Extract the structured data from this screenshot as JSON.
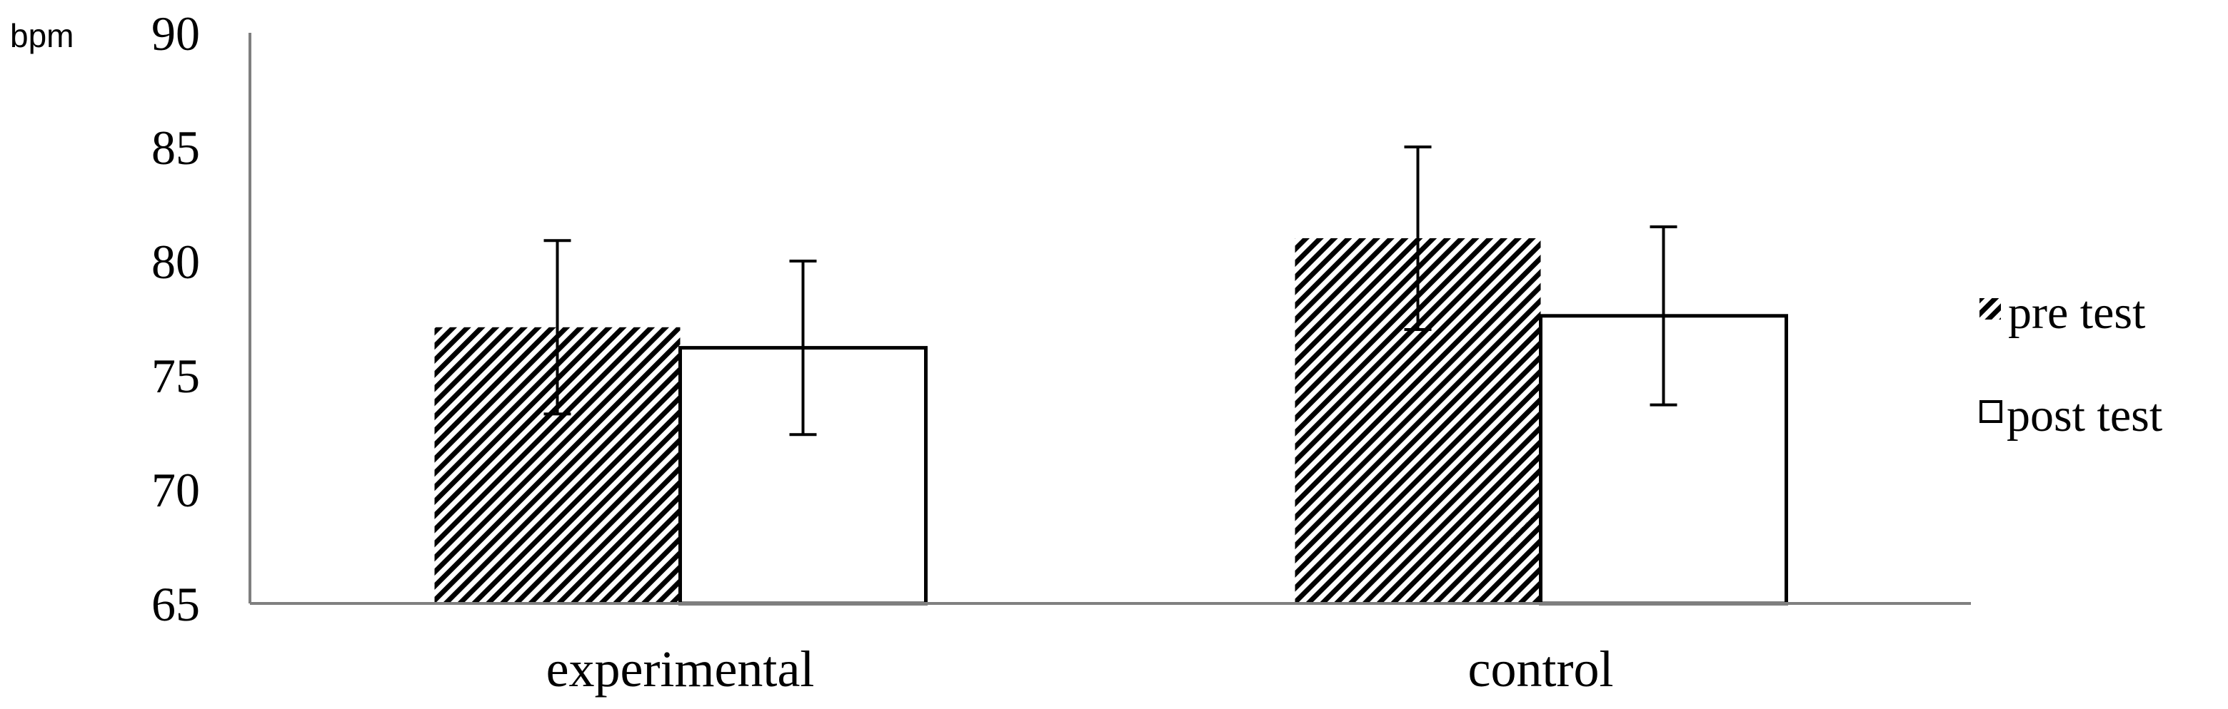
{
  "chart_data": {
    "type": "bar",
    "title": "",
    "xlabel": "",
    "ylabel": "bpm",
    "ylim": [
      65,
      90
    ],
    "yticks": [
      65,
      70,
      75,
      80,
      85,
      90
    ],
    "categories": [
      "experimental",
      "control"
    ],
    "series": [
      {
        "name": "pre test",
        "values": [
          77.1,
          81.0
        ],
        "errors": [
          3.8,
          4.0
        ],
        "fill": "hatched"
      },
      {
        "name": "post test",
        "values": [
          76.2,
          77.6
        ],
        "errors": [
          3.8,
          3.9
        ],
        "fill": "white"
      }
    ],
    "grid": false,
    "legend": "right",
    "colors": {
      "axis": "#7f7f7f",
      "bar_edge": "#000000",
      "hatch": "#000000",
      "post_fill": "#ffffff"
    }
  }
}
